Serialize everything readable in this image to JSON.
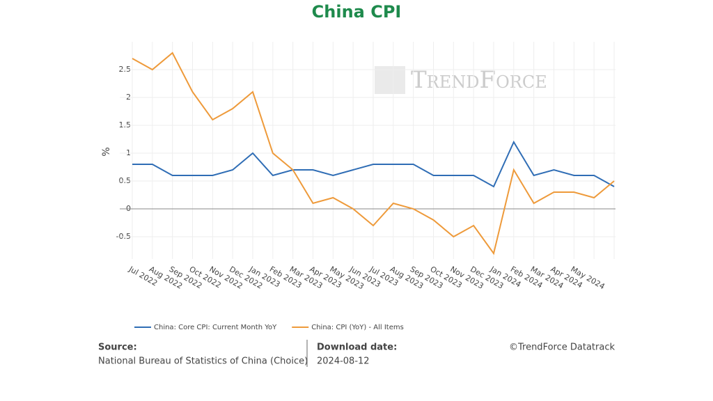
{
  "chart_data": {
    "type": "line",
    "title": "China CPI",
    "y_label": "%",
    "categories": [
      "Jul 2022",
      "Aug 2022",
      "Sep 2022",
      "Oct 2022",
      "Nov 2022",
      "Dec 2022",
      "Jan 2023",
      "Feb 2023",
      "Mar 2023",
      "Apr 2023",
      "May 2023",
      "Jun 2023",
      "Jul 2023",
      "Aug 2023",
      "Sep 2023",
      "Oct 2023",
      "Nov 2023",
      "Dec 2023",
      "Jan 2024",
      "Feb 2024",
      "Mar 2024",
      "Apr 2024",
      "May 2024",
      null,
      null
    ],
    "series": [
      {
        "name": "China: Core CPI: Current Month YoY",
        "color": "#2f6db5",
        "values": [
          0.8,
          0.8,
          0.6,
          0.6,
          0.6,
          0.7,
          1.0,
          0.6,
          0.7,
          0.7,
          0.6,
          0.7,
          0.8,
          0.8,
          0.8,
          0.6,
          0.6,
          0.6,
          0.4,
          1.2,
          0.6,
          0.7,
          0.6,
          0.6,
          0.4
        ]
      },
      {
        "name": "China: CPI (YoY) - All Items",
        "color": "#ee9a3a",
        "values": [
          2.7,
          2.5,
          2.8,
          2.1,
          1.6,
          1.8,
          2.1,
          1.0,
          0.7,
          0.1,
          0.2,
          0.0,
          -0.3,
          0.1,
          0.0,
          -0.2,
          -0.5,
          -0.3,
          -0.8,
          0.7,
          0.1,
          0.3,
          0.3,
          0.2,
          0.5
        ]
      }
    ],
    "ylim": [
      -0.9,
      3
    ],
    "yticks": [
      -0.5,
      0,
      0.5,
      1,
      1.5,
      2,
      2.5
    ],
    "grid": true,
    "watermark": "TrendForce"
  },
  "footer": {
    "source_label": "Source:",
    "source": "National Bureau of Statistics of China (Choice)",
    "date_label": "Download date:",
    "date": "2024-08-12",
    "copyright": "©TrendForce Datatrack"
  }
}
